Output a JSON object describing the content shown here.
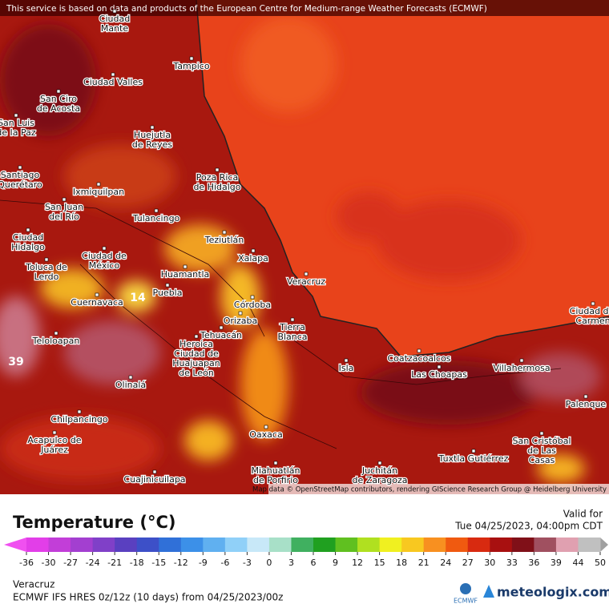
{
  "disclaimer": "This service is based on data and products of the European Centre for Medium-range Weather Forecasts (ECMWF)",
  "attribution": "Map data © OpenStreetMap contributors, rendering GIScience Research Group @ Heidelberg University",
  "cities": [
    {
      "label": [
        "Ciudad",
        "Mante"
      ]
    },
    {
      "label": [
        "Tampico"
      ]
    },
    {
      "label": [
        "Ciudad Valles"
      ]
    },
    {
      "label": [
        "San Ciro",
        "de Acosta"
      ]
    },
    {
      "label": [
        "San Luis",
        "de la Paz"
      ]
    },
    {
      "label": [
        "Huejutla",
        "de Reyes"
      ]
    },
    {
      "label": [
        "Poza Rica",
        "de Hidalgo"
      ]
    },
    {
      "label": [
        "Santiago",
        "Querétaro"
      ]
    },
    {
      "label": [
        "Ixmiquilpan"
      ]
    },
    {
      "label": [
        "San Juan",
        "del Río"
      ]
    },
    {
      "label": [
        "Tulancingo"
      ]
    },
    {
      "label": [
        "Ciudad",
        "Hidalgo"
      ]
    },
    {
      "label": [
        "Teziutlán"
      ]
    },
    {
      "label": [
        "Xalapa"
      ]
    },
    {
      "label": [
        "Ciudad de",
        "México"
      ]
    },
    {
      "label": [
        "Toluca de",
        "Lerdo"
      ]
    },
    {
      "label": [
        "Huamantla"
      ]
    },
    {
      "label": [
        "Veracruz"
      ]
    },
    {
      "label": [
        "Puebla"
      ]
    },
    {
      "label": [
        "Cuernavaca"
      ]
    },
    {
      "label": [
        "Córdoba"
      ]
    },
    {
      "label": [
        "Orizaba"
      ]
    },
    {
      "label": [
        "Tierra",
        "Blanca"
      ]
    },
    {
      "label": [
        "Tehuacán"
      ]
    },
    {
      "label": [
        "Teloloapan"
      ]
    },
    {
      "label": [
        "Coatzacoalcos"
      ]
    },
    {
      "label": [
        "Heroica",
        "Ciudad de",
        "Huajuapan",
        "de León"
      ]
    },
    {
      "label": [
        "Villahermosa"
      ]
    },
    {
      "label": [
        "Las Choapas"
      ]
    },
    {
      "label": [
        "Isla"
      ]
    },
    {
      "label": [
        "Olinalá"
      ]
    },
    {
      "label": [
        "Palenque"
      ]
    },
    {
      "label": [
        "Chilpancingo"
      ]
    },
    {
      "label": [
        "Oaxaca"
      ]
    },
    {
      "label": [
        "San Cristóbal",
        "de Las",
        "Casas"
      ]
    },
    {
      "label": [
        "Acapulco de",
        "Juárez"
      ]
    },
    {
      "label": [
        "Tuxtla Gutiérrez"
      ]
    },
    {
      "label": [
        "Juchitán",
        "de Zaragoza"
      ]
    },
    {
      "label": [
        "Miahuatlán",
        "de Porfirio"
      ]
    },
    {
      "label": [
        "Cuajinicuilapa"
      ]
    },
    {
      "label": [
        "Ciudad del",
        "Carmen"
      ]
    }
  ],
  "extremes": [
    "14",
    "39"
  ],
  "legend": {
    "title": "Temperature (°C)",
    "ticks": [
      -36,
      -30,
      -27,
      -24,
      -21,
      -18,
      -15,
      -12,
      -9,
      -6,
      -3,
      0,
      3,
      6,
      9,
      12,
      15,
      18,
      21,
      24,
      27,
      30,
      33,
      36,
      39,
      44,
      50
    ]
  },
  "valid": {
    "label": "Valid for",
    "time": "Tue 04/25/2023, 04:00pm CDT"
  },
  "region": "Veracruz",
  "model": "ECMWF IFS HRES 0z/12z (10 days) from  04/25/2023/00z",
  "logos": {
    "ecmwf": "ECMWF",
    "meteologix": "meteologix.com"
  }
}
